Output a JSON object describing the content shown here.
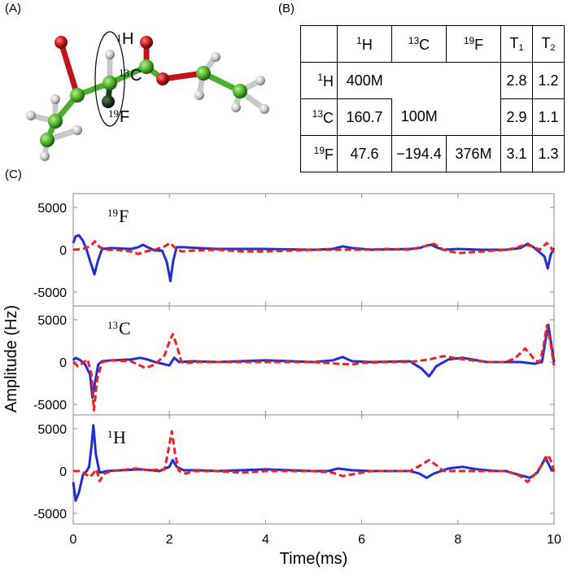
{
  "panels": {
    "a": "(A)",
    "b": "(B)",
    "c": "(C)"
  },
  "molecule": {
    "labels": [
      {
        "mass": "1",
        "element": "H"
      },
      {
        "mass": "13",
        "element": "C"
      },
      {
        "mass": "19",
        "element": "F"
      }
    ],
    "colors": {
      "carbon": "#4caf2a",
      "oxygen": "#c0141a",
      "hydrogen": "#c8c8c8",
      "fluorine": "#1d3a1d"
    }
  },
  "table": {
    "col_headers": [
      {
        "sup": "1",
        "main": "H"
      },
      {
        "sup": "13",
        "main": "C"
      },
      {
        "sup": "19",
        "main": "F"
      },
      {
        "main": "T",
        "sub": "1"
      },
      {
        "main": "T",
        "sub": "2"
      }
    ],
    "rows": [
      {
        "sup": "1",
        "main": "H",
        "cells": [
          "400M",
          "",
          "",
          "2.8",
          "1.2"
        ]
      },
      {
        "sup": "13",
        "main": "C",
        "cells": [
          "160.7",
          "100M",
          "",
          "2.9",
          "1.1"
        ]
      },
      {
        "sup": "19",
        "main": "F",
        "cells": [
          "47.6",
          "−194.4",
          "376M",
          "3.1",
          "1.3"
        ]
      }
    ]
  },
  "chart_data": {
    "type": "line",
    "xlabel": "Time(ms)",
    "ylabel": "Amplitude (Hz)",
    "xlim": [
      0,
      10
    ],
    "x_ticks": [
      "0",
      "2",
      "4",
      "6",
      "8",
      "10"
    ],
    "y_ticks": [
      "5000",
      "0",
      "-5000"
    ],
    "ylim": [
      -6500,
      6500
    ],
    "colors": {
      "blue": "#1f2fd0",
      "red": "#ee2020"
    },
    "panels": [
      {
        "label_sup": "19",
        "label_main": "F",
        "series": [
          {
            "color": "blue",
            "style": "solid",
            "x": [
              0,
              0.05,
              0.12,
              0.2,
              0.28,
              0.36,
              0.44,
              0.52,
              0.6,
              0.8,
              1.2,
              1.35,
              1.45,
              1.55,
              1.7,
              1.85,
              1.95,
              2.02,
              2.08,
              2.15,
              2.3,
              2.6,
              3.0,
              4.0,
              5.0,
              5.4,
              5.6,
              5.8,
              6.2,
              7.0,
              7.2,
              7.35,
              7.45,
              7.55,
              7.7,
              8.0,
              8.5,
              9.0,
              9.3,
              9.45,
              9.55,
              9.7,
              9.8,
              9.87,
              9.93,
              10
            ],
            "y": [
              800,
              1600,
              1700,
              1100,
              0,
              -1500,
              -2900,
              -1200,
              100,
              200,
              100,
              300,
              600,
              300,
              -100,
              -100,
              -1500,
              -3700,
              -1300,
              300,
              300,
              200,
              100,
              100,
              0,
              100,
              400,
              200,
              0,
              100,
              200,
              500,
              600,
              300,
              0,
              100,
              0,
              0,
              200,
              700,
              400,
              -300,
              -800,
              -2200,
              -600,
              200
            ]
          },
          {
            "color": "red",
            "style": "dashed",
            "x": [
              0,
              0.2,
              0.35,
              0.45,
              0.55,
              0.7,
              0.9,
              1.2,
              1.35,
              1.5,
              1.7,
              1.9,
              2.02,
              2.12,
              2.25,
              2.5,
              3.0,
              3.5,
              4.0,
              5.0,
              6.0,
              6.5,
              7.0,
              7.3,
              7.5,
              7.7,
              8.0,
              8.5,
              9.0,
              9.2,
              9.4,
              9.55,
              9.7,
              9.85,
              9.93,
              10
            ],
            "y": [
              0,
              100,
              400,
              1000,
              300,
              0,
              0,
              -200,
              -500,
              -200,
              0,
              400,
              800,
              200,
              -200,
              -100,
              0,
              -200,
              -200,
              0,
              0,
              100,
              0,
              400,
              700,
              0,
              -400,
              -200,
              0,
              200,
              600,
              400,
              0,
              800,
              300,
              -300
            ]
          }
        ]
      },
      {
        "label_sup": "13",
        "label_main": "C",
        "series": [
          {
            "color": "blue",
            "style": "solid",
            "x": [
              0,
              0.05,
              0.15,
              0.25,
              0.35,
              0.4,
              0.45,
              0.52,
              0.6,
              0.8,
              1.2,
              1.4,
              1.55,
              1.7,
              2.0,
              2.1,
              2.2,
              2.5,
              3.0,
              4.0,
              5.0,
              5.4,
              5.6,
              5.8,
              6.2,
              7.0,
              7.25,
              7.4,
              7.55,
              7.8,
              8.1,
              8.3,
              8.6,
              9.0,
              9.3,
              9.6,
              9.75,
              9.82,
              9.88,
              9.94,
              10
            ],
            "y": [
              200,
              500,
              200,
              -300,
              -1500,
              -4200,
              -2500,
              -300,
              100,
              200,
              300,
              500,
              300,
              0,
              -400,
              500,
              0,
              100,
              0,
              200,
              0,
              200,
              600,
              100,
              0,
              100,
              -800,
              -1700,
              -500,
              300,
              500,
              300,
              0,
              0,
              0,
              -200,
              0,
              2500,
              4400,
              2200,
              0
            ]
          },
          {
            "color": "red",
            "style": "dashed",
            "x": [
              0,
              0.1,
              0.2,
              0.3,
              0.38,
              0.43,
              0.5,
              0.6,
              0.8,
              1.2,
              1.5,
              1.7,
              1.9,
              2.0,
              2.07,
              2.15,
              2.25,
              2.4,
              2.6,
              3.0,
              4.0,
              5.0,
              5.5,
              5.8,
              6.0,
              6.5,
              7.0,
              7.4,
              7.7,
              8.0,
              8.3,
              8.6,
              9.0,
              9.2,
              9.4,
              9.5,
              9.6,
              9.7,
              9.78,
              9.85,
              9.92,
              10
            ],
            "y": [
              0,
              -500,
              -100,
              300,
              -1500,
              -5700,
              -2000,
              0,
              200,
              100,
              -700,
              -300,
              800,
              2400,
              3300,
              2000,
              0,
              -100,
              0,
              0,
              0,
              0,
              -200,
              -300,
              -100,
              0,
              0,
              300,
              700,
              400,
              200,
              0,
              0,
              500,
              1600,
              1000,
              200,
              0,
              1800,
              4300,
              2500,
              -400
            ]
          }
        ]
      },
      {
        "label_sup": "1",
        "label_main": "H",
        "series": [
          {
            "color": "blue",
            "style": "solid",
            "x": [
              0,
              0.05,
              0.12,
              0.2,
              0.28,
              0.33,
              0.38,
              0.42,
              0.47,
              0.55,
              0.7,
              1.0,
              1.4,
              1.8,
              2.0,
              2.07,
              2.15,
              2.3,
              2.6,
              3.0,
              4.0,
              5.0,
              5.3,
              5.5,
              5.8,
              6.2,
              7.0,
              7.2,
              7.35,
              7.5,
              7.8,
              8.1,
              8.4,
              8.8,
              9.0,
              9.3,
              9.5,
              9.65,
              9.75,
              9.82,
              9.88,
              9.95,
              10
            ],
            "y": [
              -1300,
              -3500,
              -2500,
              -500,
              0,
              500,
              3000,
              5400,
              2000,
              -200,
              0,
              100,
              200,
              0,
              500,
              1300,
              500,
              100,
              100,
              0,
              200,
              0,
              0,
              300,
              100,
              0,
              0,
              -300,
              -800,
              -300,
              300,
              500,
              200,
              0,
              0,
              -500,
              -800,
              -200,
              800,
              1600,
              900,
              100,
              0
            ]
          },
          {
            "color": "red",
            "style": "dashed",
            "x": [
              0,
              0.15,
              0.25,
              0.33,
              0.4,
              0.48,
              0.55,
              0.65,
              0.8,
              1.0,
              1.3,
              1.6,
              1.9,
              1.98,
              2.05,
              2.12,
              2.2,
              2.35,
              2.5,
              3.0,
              3.5,
              4.0,
              5.0,
              5.4,
              5.6,
              5.9,
              6.2,
              7.0,
              7.2,
              7.4,
              7.55,
              7.7,
              8.0,
              8.4,
              8.8,
              9.0,
              9.3,
              9.45,
              9.6,
              9.72,
              9.8,
              9.88,
              9.95,
              10
            ],
            "y": [
              0,
              0,
              -300,
              -700,
              -400,
              200,
              -1200,
              -300,
              0,
              100,
              300,
              100,
              200,
              2500,
              4700,
              2000,
              0,
              -300,
              0,
              0,
              -200,
              0,
              0,
              -200,
              -600,
              -300,
              0,
              0,
              600,
              1300,
              700,
              0,
              0,
              0,
              0,
              0,
              -600,
              -1300,
              -400,
              500,
              1200,
              1900,
              1000,
              0
            ]
          }
        ]
      }
    ]
  }
}
